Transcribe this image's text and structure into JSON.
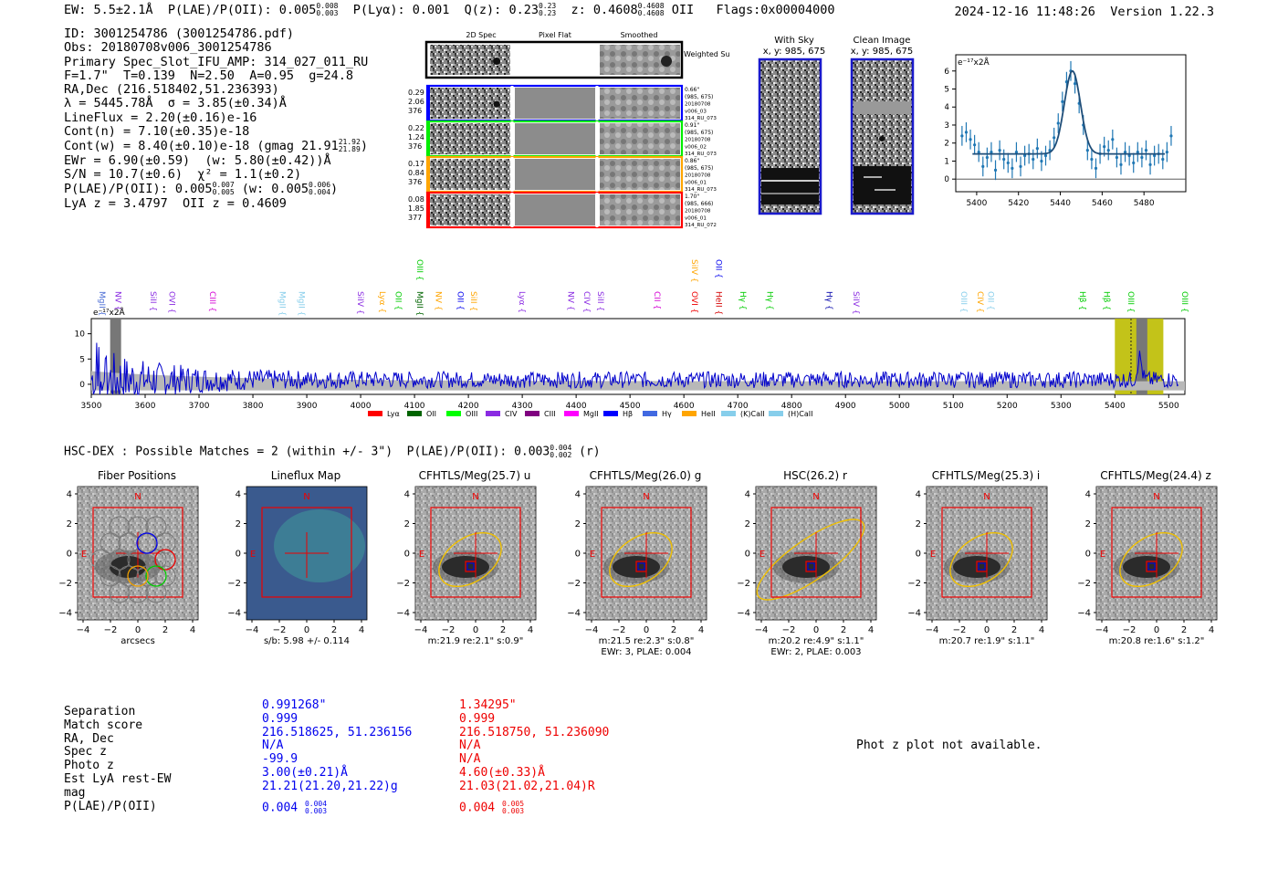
{
  "header": {
    "ew": "EW: 5.5±2.1Å",
    "plae": "P(LAE)/P(OII): 0.005",
    "plae_hi": "0.008",
    "plae_lo": "0.003",
    "plya": "P(Lyα): 0.001",
    "qz": "Q(z): 0.23",
    "qz_hi": "0.23",
    "qz_lo": "0.23",
    "z": "z: 0.4608",
    "z_hi": "0.4608",
    "z_lo": "0.4608",
    "z_line": "OII",
    "flags": "Flags:0x00004000",
    "datetime": "2024-12-16 11:48:26",
    "version": "Version 1.22.3"
  },
  "info": {
    "id": "ID: 3001254786 (3001254786.pdf)",
    "obs": "Obs: 20180708v006_3001254786",
    "primary": "Primary Spec_Slot_IFU_AMP: 314_027_011_RU",
    "fparams": "F=1.7\"  T=0.139  N=2.50  A=0.95  g=24.8",
    "radec": "RA,Dec (216.518402,51.236393)",
    "lambda": "λ = 5445.78Å  σ = 3.85(±0.34)Å",
    "lineflux": "LineFlux = 2.20(±0.16)e-16",
    "contn": "Cont(n) = 7.10(±0.35)e-18",
    "contw": "Cont(w) = 8.40(±0.10)e-18 (gmag 21.91",
    "contw_hi": "21.92",
    "contw_lo": "21.89",
    "contw_end": ")",
    "ewr": "EWr = 6.90(±0.59)  (w: 5.80(±0.42))Å",
    "sn": "S/N = 10.7(±0.6)  χ² = 1.1(±0.2)",
    "plae": "P(LAE)/P(OII): 0.005",
    "plae_hi": "0.007",
    "plae_lo": "0.005",
    "plae_w": "(w: 0.005",
    "plae_w_hi": "0.006",
    "plae_w_lo": "0.004",
    "plae_end": ")",
    "lyaz": "LyA z = 3.4797  OII z = 0.4609"
  },
  "cutouts": {
    "col_labels": [
      "2D Spec",
      "Pixel Flat",
      "Smoothed"
    ],
    "weighted_sum": "Weighted Sum",
    "rows": [
      {
        "left": [
          "0.29",
          "2.06",
          "376"
        ],
        "right": [
          "0.66\"",
          "(985, 675)",
          "20180708",
          "v006_03",
          "314_RU_073"
        ],
        "color": "#0000ff"
      },
      {
        "left": [
          "0.22",
          "1.24",
          "376"
        ],
        "right": [
          "0.91\"",
          "(985, 675)",
          "20180708",
          "v006_02",
          "314_RU_073"
        ],
        "color": "#00ee00"
      },
      {
        "left": [
          "0.17",
          "0.84",
          "376"
        ],
        "right": [
          "0.86\"",
          "(985, 675)",
          "20180708",
          "v006_01",
          "314_RU_073"
        ],
        "color": "#ffa500"
      },
      {
        "left": [
          "0.08",
          "1.85",
          "377"
        ],
        "right": [
          "1.70\"",
          "(985, 666)",
          "20180708",
          "v006_01",
          "314_RU_072"
        ],
        "color": "#ff0000"
      }
    ],
    "with_sky": "With Sky",
    "with_sky_xy": "x, y: 985, 675",
    "clean": "Clean Image",
    "clean_xy": "x, y: 985, 675"
  },
  "colors": {
    "blue_text": "#0000ee",
    "red_text": "#ee0000",
    "fit_line": "#1f4e79",
    "data_pts": "#1f77b4",
    "spectrum": "#0000cc",
    "highlight": "#bcbc00"
  },
  "chart_data": [
    {
      "type": "scatter",
      "title": "",
      "ylabel_unit": "e⁻¹⁷x2Å",
      "xlim": [
        5390,
        5500
      ],
      "ylim": [
        -0.7,
        6.9
      ],
      "xticks": [
        5400,
        5420,
        5440,
        5460,
        5480
      ],
      "yticks": [
        0,
        1,
        2,
        3,
        4,
        5,
        6
      ],
      "x": [
        5393,
        5395,
        5397,
        5399,
        5401,
        5403,
        5405,
        5407,
        5409,
        5411,
        5413,
        5415,
        5417,
        5419,
        5421,
        5423,
        5425,
        5427,
        5429,
        5431,
        5433,
        5435,
        5437,
        5439,
        5441,
        5443,
        5445,
        5447,
        5449,
        5451,
        5453,
        5455,
        5457,
        5459,
        5461,
        5463,
        5465,
        5467,
        5469,
        5471,
        5473,
        5475,
        5477,
        5479,
        5481,
        5483,
        5485,
        5487,
        5489,
        5491,
        5493
      ],
      "y": [
        2.4,
        2.6,
        2.2,
        1.9,
        1.5,
        0.7,
        1.2,
        1.5,
        0.5,
        1.6,
        1.1,
        0.9,
        0.6,
        1.5,
        0.7,
        1.3,
        1.4,
        1.1,
        1.7,
        1.0,
        1.3,
        1.6,
        2.3,
        3.1,
        4.3,
        5.4,
        6.0,
        5.3,
        4.2,
        3.0,
        1.6,
        1.1,
        0.6,
        1.4,
        1.8,
        1.6,
        2.2,
        1.2,
        0.8,
        1.5,
        1.3,
        0.9,
        1.5,
        1.2,
        1.6,
        0.8,
        1.3,
        1.4,
        1.1,
        1.5,
        2.4
      ],
      "fit": {
        "center": 5445.78,
        "sigma": 3.85,
        "amplitude": 4.6,
        "continuum": 1.4
      }
    },
    {
      "type": "line",
      "ylabel_unit": "e⁻¹⁷x2Å",
      "xlim": [
        3500,
        5530
      ],
      "ylim": [
        -2,
        13
      ],
      "xticks": [
        3500,
        3600,
        3700,
        3800,
        3900,
        4000,
        4100,
        4200,
        4300,
        4400,
        4500,
        4600,
        4700,
        4800,
        4900,
        5000,
        5100,
        5200,
        5300,
        5400,
        5500
      ],
      "yticks": [
        0,
        5,
        10
      ],
      "emission_line_labels": [
        {
          "name": "MgII",
          "x": 3510,
          "color": "#4a6cd4"
        },
        {
          "name": "NV",
          "x": 3540,
          "color": "#8a2be2"
        },
        {
          "name": "SiII",
          "x": 3605,
          "color": "#8a2be2"
        },
        {
          "name": "OVI",
          "x": 3640,
          "color": "#8a2be2"
        },
        {
          "name": "CIII",
          "x": 3715,
          "color": "#d400d4"
        },
        {
          "name": "MgII",
          "x": 3845,
          "color": "#87ceeb"
        },
        {
          "name": "MgII",
          "x": 3880,
          "color": "#87ceeb"
        },
        {
          "name": "SiIV",
          "x": 3990,
          "color": "#8a2be2"
        },
        {
          "name": "Lyα",
          "x": 4030,
          "color": "#ffa500"
        },
        {
          "name": "OII",
          "x": 4060,
          "color": "#00cc00"
        },
        {
          "name": "MgII",
          "x": 4100,
          "color": "#006400"
        },
        {
          "name": "OIII",
          "x": 4100,
          "color": "#00cc00",
          "raised": true
        },
        {
          "name": "NV",
          "x": 4135,
          "color": "#ffa500"
        },
        {
          "name": "OII",
          "x": 4175,
          "color": "#0000ee"
        },
        {
          "name": "SiII",
          "x": 4200,
          "color": "#ffa500"
        },
        {
          "name": "Lyα",
          "x": 4290,
          "color": "#8a2be2"
        },
        {
          "name": "NV",
          "x": 4380,
          "color": "#8a2be2"
        },
        {
          "name": "CIV",
          "x": 4410,
          "color": "#8a2be2"
        },
        {
          "name": "SiII",
          "x": 4435,
          "color": "#8a2be2"
        },
        {
          "name": "CII",
          "x": 4540,
          "color": "#d400d4"
        },
        {
          "name": "OVI",
          "x": 4610,
          "color": "#ee0000"
        },
        {
          "name": "SiIV",
          "x": 4610,
          "color": "#ffa500",
          "raised": true
        },
        {
          "name": "HeII",
          "x": 4655,
          "color": "#d40000"
        },
        {
          "name": "OII",
          "x": 4655,
          "color": "#0000ee",
          "raised": true
        },
        {
          "name": "Hγ",
          "x": 4700,
          "color": "#00cc00"
        },
        {
          "name": "Hγ",
          "x": 4750,
          "color": "#00cc00"
        },
        {
          "name": "Hγ",
          "x": 4860,
          "color": "#0000aa"
        },
        {
          "name": "SiIV",
          "x": 4910,
          "color": "#8a2be2"
        },
        {
          "name": "OIII",
          "x": 5110,
          "color": "#87ceeb"
        },
        {
          "name": "CIV",
          "x": 5140,
          "color": "#ffa500"
        },
        {
          "name": "OII",
          "x": 5160,
          "color": "#87ceeb"
        },
        {
          "name": "Hβ",
          "x": 5330,
          "color": "#00cc00"
        },
        {
          "name": "Hβ",
          "x": 5375,
          "color": "#00cc00"
        },
        {
          "name": "OIII",
          "x": 5420,
          "color": "#00cc00"
        },
        {
          "name": "OIII",
          "x": 5520,
          "color": "#00cc00"
        }
      ],
      "highlight_ranges": [
        [
          5400,
          5490
        ]
      ],
      "legend": [
        {
          "name": "Lyα",
          "color": "#ff0000"
        },
        {
          "name": "OII",
          "color": "#006400"
        },
        {
          "name": "OIII",
          "color": "#00ff00"
        },
        {
          "name": "CIV",
          "color": "#8a2be2"
        },
        {
          "name": "CIII",
          "color": "#800080"
        },
        {
          "name": "MgII",
          "color": "#ff00ff"
        },
        {
          "name": "Hβ",
          "color": "#0000ff"
        },
        {
          "name": "Hγ",
          "color": "#4169e1"
        },
        {
          "name": "HeII",
          "color": "#ffa500"
        },
        {
          "name": "(K)CaII",
          "color": "#87ceeb"
        },
        {
          "name": "(H)CaII",
          "color": "#87ceeb"
        }
      ]
    }
  ],
  "hsc": {
    "title": "HSC-DEX : Possible Matches = 2 (within +/- 3\")  P(LAE)/P(OII): 0.003",
    "title_hi": "0.004",
    "title_lo": "0.002",
    "title_end": "(r)",
    "panels": [
      {
        "title": "Fiber Positions",
        "caption": [
          "arcsecs"
        ]
      },
      {
        "title": "Lineflux Map",
        "caption": [
          "s/b: 5.98 +/- 0.114"
        ]
      },
      {
        "title": "CFHTLS/Meg(25.7) u",
        "caption": [
          "m:21.9  re:2.1\"  s:0.9\""
        ]
      },
      {
        "title": "CFHTLS/Meg(26.0) g",
        "caption": [
          "m:21.5  re:2.3\"  s:0.8\"",
          "EWr: 3, PLAE: 0.004"
        ]
      },
      {
        "title": "HSC(26.2) r",
        "caption": [
          "m:20.2  re:4.9\"  s:1.1\"",
          "EWr: 2, PLAE: 0.003"
        ]
      },
      {
        "title": "CFHTLS/Meg(25.3) i",
        "caption": [
          "m:20.7  re:1.9\"  s:1.1\""
        ]
      },
      {
        "title": "CFHTLS/Meg(24.4) z",
        "caption": [
          "m:20.8  re:1.6\"  s:1.2\""
        ]
      }
    ],
    "axis_ticks": [
      "-4",
      "-2",
      "0",
      "2",
      "4"
    ],
    "n_label": "N",
    "e_label": "E"
  },
  "matches": {
    "labels": [
      "Separation",
      "Match score",
      "RA, Dec",
      "Spec z",
      "Photo z",
      "Est LyA rest-EW",
      "mag",
      "P(LAE)/P(OII)"
    ],
    "m1": [
      "0.991268\"",
      "0.999",
      "216.518625, 51.236156",
      "N/A",
      "-99.9",
      "3.00(±0.21)Å",
      "21.21(21.20,21.22)g",
      "0.004"
    ],
    "m1_plae_hi": "0.004",
    "m1_plae_lo": "0.003",
    "m2": [
      "1.34295\"",
      "0.999",
      "216.518750, 51.236090",
      "N/A",
      "N/A",
      "4.60(±0.33)Å",
      "21.03(21.02,21.04)R",
      "0.004"
    ],
    "m2_plae_hi": "0.005",
    "m2_plae_lo": "0.003",
    "photz_msg": "Phot z plot not available."
  }
}
